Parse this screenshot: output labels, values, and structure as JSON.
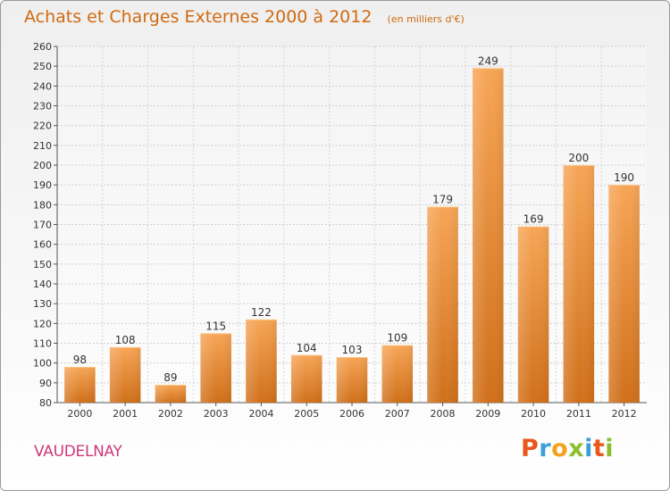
{
  "chart_data": {
    "type": "bar",
    "title": "Achats et Charges Externes 2000 à 2012",
    "unit_label": "(en milliers d'€)",
    "categories": [
      "2000",
      "2001",
      "2002",
      "2003",
      "2004",
      "2005",
      "2006",
      "2007",
      "2008",
      "2009",
      "2010",
      "2011",
      "2012"
    ],
    "values": [
      98,
      108,
      89,
      115,
      122,
      104,
      103,
      109,
      179,
      249,
      169,
      200,
      190
    ],
    "ylim": [
      80,
      260
    ],
    "yticks": [
      80,
      90,
      100,
      110,
      120,
      130,
      140,
      150,
      160,
      170,
      180,
      190,
      200,
      210,
      220,
      230,
      240,
      250,
      260
    ],
    "grid": true,
    "xlabel": "",
    "ylabel": "",
    "bar_color_top": "#f7a556",
    "bar_color_bottom": "#d0701a"
  },
  "place_name": "VAUDELNAY",
  "logo": {
    "text": "Proxiti",
    "letters": [
      {
        "char": "P",
        "color": "#e8571c"
      },
      {
        "char": "r",
        "color": "#3aa0d8"
      },
      {
        "char": "o",
        "color": "#f2a21c"
      },
      {
        "char": "x",
        "color": "#8cbf2e"
      },
      {
        "char": "i",
        "color": "#3aa0d8"
      },
      {
        "char": "t",
        "color": "#e8571c"
      },
      {
        "char": "i",
        "color": "#8cbf2e"
      }
    ]
  },
  "colors": {
    "title": "#d06a10",
    "place_name": "#cc3a7a",
    "frame_border": "#9a9a9a"
  }
}
